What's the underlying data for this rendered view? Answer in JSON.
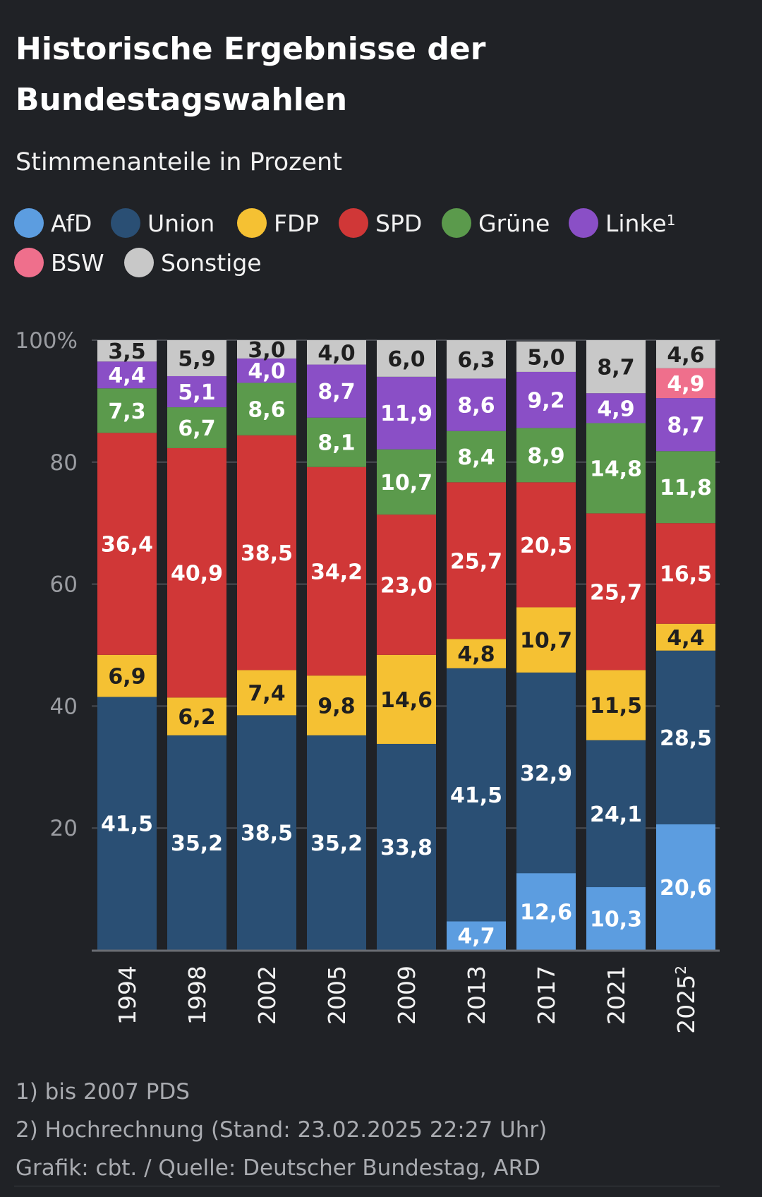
{
  "header": {
    "title": "Historische Ergebnisse der Bundestagswahlen",
    "subtitle": "Stimmenanteile in Prozent"
  },
  "legend": {
    "items": [
      {
        "label": "AfD",
        "sup": "",
        "color": "#5c9de0"
      },
      {
        "label": "Union",
        "sup": "",
        "color": "#2a4f74"
      },
      {
        "label": "FDP",
        "sup": "",
        "color": "#f5c133"
      },
      {
        "label": "SPD",
        "sup": "",
        "color": "#d03737"
      },
      {
        "label": "Grüne",
        "sup": "",
        "color": "#5b9a4c"
      },
      {
        "label": "Linke",
        "sup": "1",
        "color": "#8a4fc6"
      },
      {
        "label": "BSW",
        "sup": "",
        "color": "#ef6f8c"
      },
      {
        "label": "Sonstige",
        "sup": "",
        "color": "#c8c8c8"
      }
    ]
  },
  "chart_data": {
    "type": "bar",
    "stacked": true,
    "title": "Historische Ergebnisse der Bundestagswahlen",
    "subtitle": "Stimmenanteile in Prozent",
    "ylim": [
      0,
      100
    ],
    "y_ticks": [
      "20",
      "40",
      "60",
      "80",
      "100%"
    ],
    "y_tick_values": [
      20,
      40,
      60,
      80,
      100
    ],
    "grid": true,
    "legend_position": "top",
    "categories": [
      "1994",
      "1998",
      "2002",
      "2005",
      "2009",
      "2013",
      "2017",
      "2021",
      "2025"
    ],
    "category_superscripts": [
      "",
      "",
      "",
      "",
      "",
      "",
      "",
      "",
      "2"
    ],
    "series": [
      {
        "name": "AfD",
        "color": "#5c9de0",
        "label_color": "#ffffff",
        "values": [
          null,
          null,
          null,
          null,
          null,
          4.7,
          12.6,
          10.3,
          20.6
        ],
        "labels": [
          "",
          "",
          "",
          "",
          "",
          "4,7",
          "12,6",
          "10,3",
          "20,6"
        ]
      },
      {
        "name": "Union",
        "color": "#2a4f74",
        "label_color": "#ffffff",
        "values": [
          41.5,
          35.2,
          38.5,
          35.2,
          33.8,
          41.5,
          32.9,
          24.1,
          28.5
        ],
        "labels": [
          "41,5",
          "35,2",
          "38,5",
          "35,2",
          "33,8",
          "41,5",
          "32,9",
          "24,1",
          "28,5"
        ]
      },
      {
        "name": "FDP",
        "color": "#f5c133",
        "label_color": "#1f1f1f",
        "values": [
          6.9,
          6.2,
          7.4,
          9.8,
          14.6,
          4.8,
          10.7,
          11.5,
          4.4
        ],
        "labels": [
          "6,9",
          "6,2",
          "7,4",
          "9,8",
          "14,6",
          "4,8",
          "10,7",
          "11,5",
          "4,4"
        ]
      },
      {
        "name": "SPD",
        "color": "#d03737",
        "label_color": "#ffffff",
        "values": [
          36.4,
          40.9,
          38.5,
          34.2,
          23.0,
          25.7,
          20.5,
          25.7,
          16.5
        ],
        "labels": [
          "36,4",
          "40,9",
          "38,5",
          "34,2",
          "23,0",
          "25,7",
          "20,5",
          "25,7",
          "16,5"
        ]
      },
      {
        "name": "Grüne",
        "color": "#5b9a4c",
        "label_color": "#ffffff",
        "values": [
          7.3,
          6.7,
          8.6,
          8.1,
          10.7,
          8.4,
          8.9,
          14.8,
          11.8
        ],
        "labels": [
          "7,3",
          "6,7",
          "8,6",
          "8,1",
          "10,7",
          "8,4",
          "8,9",
          "14,8",
          "11,8"
        ]
      },
      {
        "name": "Linke",
        "color": "#8a4fc6",
        "label_color": "#ffffff",
        "values": [
          4.4,
          5.1,
          4.0,
          8.7,
          11.9,
          8.6,
          9.2,
          4.9,
          8.7
        ],
        "labels": [
          "4,4",
          "5,1",
          "4,0",
          "8,7",
          "11,9",
          "8,6",
          "9,2",
          "4,9",
          "8,7"
        ]
      },
      {
        "name": "BSW",
        "color": "#ef6f8c",
        "label_color": "#ffffff",
        "values": [
          null,
          null,
          null,
          null,
          null,
          null,
          null,
          null,
          4.9
        ],
        "labels": [
          "",
          "",
          "",
          "",
          "",
          "",
          "",
          "",
          "4,9"
        ]
      },
      {
        "name": "Sonstige",
        "color": "#c8c8c8",
        "label_color": "#1f1f1f",
        "values": [
          3.5,
          5.9,
          3.0,
          4.0,
          6.0,
          6.3,
          5.0,
          8.7,
          4.6
        ],
        "labels": [
          "3,5",
          "5,9",
          "3,0",
          "4,0",
          "6,0",
          "6,3",
          "5,0",
          "8,7",
          "4,6"
        ]
      }
    ]
  },
  "footnotes": {
    "note1": "1) bis 2007 PDS",
    "note2": "2) Hochrechnung (Stand: 23.02.2025 22:27 Uhr)",
    "source": "Grafik: cbt. / Quelle: Deutscher Bundestag, ARD"
  }
}
